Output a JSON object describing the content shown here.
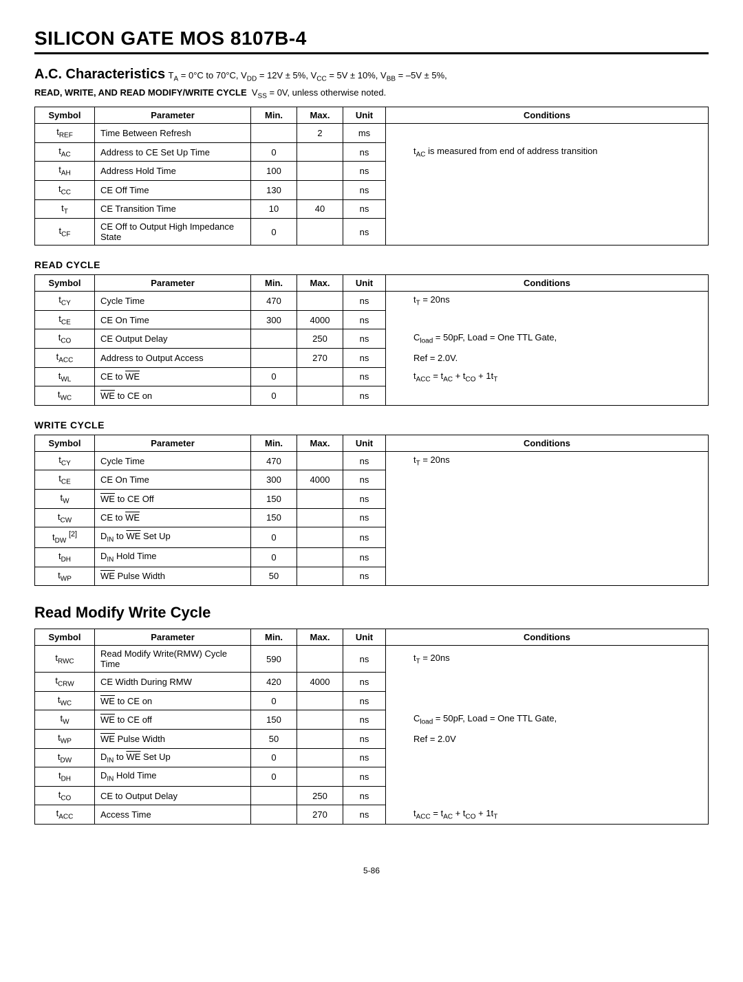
{
  "title": "SILICON GATE MOS 8107B-4",
  "acChar": {
    "heading": "A.C. Characteristics",
    "conditions": "T_A = 0°C to 70°C, V_DD = 12V ± 5%, V_CC = 5V ± 10%, V_BB = –5V ± 5%,",
    "cycleLine": "READ, WRITE, AND READ MODIFY/WRITE CYCLE  V_SS = 0V, unless otherwise noted."
  },
  "headers": {
    "symbol": "Symbol",
    "parameter": "Parameter",
    "min": "Min.",
    "max": "Max.",
    "unit": "Unit",
    "conditions": "Conditions"
  },
  "table1": {
    "rows": [
      {
        "sym": "t_REF",
        "param": "Time Between Refresh",
        "min": "",
        "max": "2",
        "unit": "ms",
        "cond": ""
      },
      {
        "sym": "t_AC",
        "param": "Address to CE Set Up Time",
        "min": "0",
        "max": "",
        "unit": "ns",
        "cond": "t_AC is measured from end of address transition"
      },
      {
        "sym": "t_AH",
        "param": "Address Hold Time",
        "min": "100",
        "max": "",
        "unit": "ns",
        "cond": ""
      },
      {
        "sym": "t_CC",
        "param": "CE Off Time",
        "min": "130",
        "max": "",
        "unit": "ns",
        "cond": ""
      },
      {
        "sym": "t_T",
        "param": "CE Transition Time",
        "min": "10",
        "max": "40",
        "unit": "ns",
        "cond": ""
      },
      {
        "sym": "t_CF",
        "param": "CE Off to Output High Impedance State",
        "min": "0",
        "max": "",
        "unit": "ns",
        "cond": ""
      }
    ]
  },
  "readCycle": {
    "title": "READ CYCLE",
    "rows": [
      {
        "sym": "t_CY",
        "param": "Cycle Time",
        "min": "470",
        "max": "",
        "unit": "ns",
        "cond": "t_T = 20ns"
      },
      {
        "sym": "t_CE",
        "param": "CE On Time",
        "min": "300",
        "max": "4000",
        "unit": "ns",
        "cond": ""
      },
      {
        "sym": "t_CO",
        "param": "CE Output Delay",
        "min": "",
        "max": "250",
        "unit": "ns",
        "cond": "C_load = 50pF, Load = One TTL Gate,"
      },
      {
        "sym": "t_ACC",
        "param": "Address to Output Access",
        "min": "",
        "max": "270",
        "unit": "ns",
        "cond": "Ref = 2.0V."
      },
      {
        "sym": "t_WL",
        "param": "CE to WE",
        "min": "0",
        "max": "",
        "unit": "ns",
        "cond": "t_ACC = t_AC + t_CO + 1t_T"
      },
      {
        "sym": "t_WC",
        "param": "WE to CE on",
        "min": "0",
        "max": "",
        "unit": "ns",
        "cond": ""
      }
    ]
  },
  "writeCycle": {
    "title": "WRITE CYCLE",
    "rows": [
      {
        "sym": "t_CY",
        "param": "Cycle Time",
        "min": "470",
        "max": "",
        "unit": "ns",
        "cond": "t_T = 20ns"
      },
      {
        "sym": "t_CE",
        "param": "CE On Time",
        "min": "300",
        "max": "4000",
        "unit": "ns",
        "cond": ""
      },
      {
        "sym": "t_W",
        "param": "WE to CE Off",
        "min": "150",
        "max": "",
        "unit": "ns",
        "cond": ""
      },
      {
        "sym": "t_CW",
        "param": "CE to WE",
        "min": "150",
        "max": "",
        "unit": "ns",
        "cond": ""
      },
      {
        "sym": "t_DW [2]",
        "param": "D_IN to WE Set Up",
        "min": "0",
        "max": "",
        "unit": "ns",
        "cond": ""
      },
      {
        "sym": "t_DH",
        "param": "D_IN Hold Time",
        "min": "0",
        "max": "",
        "unit": "ns",
        "cond": ""
      },
      {
        "sym": "t_WP",
        "param": "WE Pulse Width",
        "min": "50",
        "max": "",
        "unit": "ns",
        "cond": ""
      }
    ]
  },
  "rmwCycle": {
    "title": "Read Modify Write Cycle",
    "rows": [
      {
        "sym": "t_RWC",
        "param": "Read Modify Write(RMW) Cycle Time",
        "min": "590",
        "max": "",
        "unit": "ns",
        "cond": "t_T = 20ns"
      },
      {
        "sym": "t_CRW",
        "param": "CE Width During RMW",
        "min": "420",
        "max": "4000",
        "unit": "ns",
        "cond": ""
      },
      {
        "sym": "t_WC",
        "param": "WE to CE on",
        "min": "0",
        "max": "",
        "unit": "ns",
        "cond": ""
      },
      {
        "sym": "t_W",
        "param": "WE to CE off",
        "min": "150",
        "max": "",
        "unit": "ns",
        "cond": "C_load = 50pF, Load = One TTL Gate,"
      },
      {
        "sym": "t_WP",
        "param": "WE Pulse Width",
        "min": "50",
        "max": "",
        "unit": "ns",
        "cond": "Ref = 2.0V"
      },
      {
        "sym": "t_DW",
        "param": "D_IN to WE Set Up",
        "min": "0",
        "max": "",
        "unit": "ns",
        "cond": ""
      },
      {
        "sym": "t_DH",
        "param": "D_IN Hold Time",
        "min": "0",
        "max": "",
        "unit": "ns",
        "cond": ""
      },
      {
        "sym": "t_CO",
        "param": "CE to Output Delay",
        "min": "",
        "max": "250",
        "unit": "ns",
        "cond": ""
      },
      {
        "sym": "t_ACC",
        "param": "Access Time",
        "min": "",
        "max": "270",
        "unit": "ns",
        "cond": "t_ACC = t_AC + t_CO + 1t_T"
      }
    ]
  },
  "pageNum": "5-86"
}
